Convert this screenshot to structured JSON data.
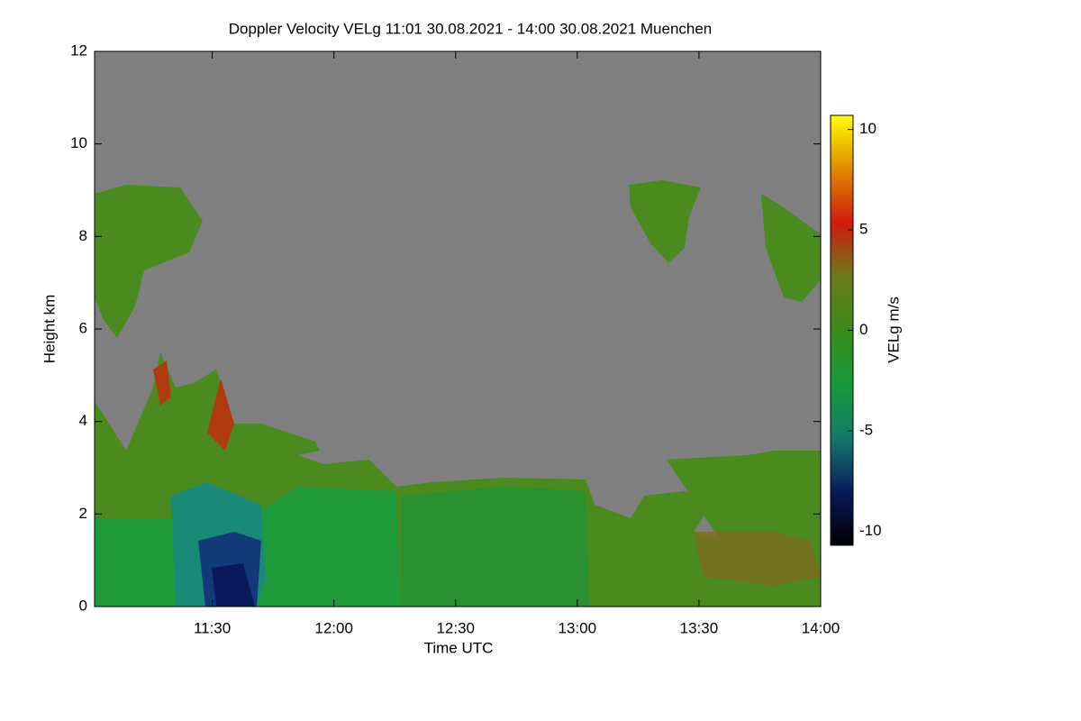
{
  "chart_data": {
    "type": "heatmap",
    "title": "Doppler Velocity VELg   11:01 30.08.2021 - 14:00 30.08.2021 Muenchen",
    "x_label": "Time UTC",
    "y_label": "Height km",
    "colorbar_label": "VELg m/s",
    "xlim": [
      661,
      840
    ],
    "xticks": [
      {
        "value": 690,
        "label": "11:30"
      },
      {
        "value": 720,
        "label": "12:00"
      },
      {
        "value": 750,
        "label": "12:30"
      },
      {
        "value": 780,
        "label": "13:00"
      },
      {
        "value": 810,
        "label": "13:30"
      },
      {
        "value": 840,
        "label": "14:00"
      }
    ],
    "ylim": [
      0,
      12
    ],
    "yticks": [
      0,
      2,
      4,
      6,
      8,
      10,
      12
    ],
    "zlim": [
      -10.7,
      10.7
    ],
    "zticks": [
      -10,
      -5,
      0,
      5,
      10
    ],
    "colormap": [
      "#000000",
      "#0a1a5a",
      "#137a6a",
      "#159a3a",
      "#3a8a1a",
      "#6a7a1a",
      "#d01a0a",
      "#e08a00",
      "#ffff00"
    ],
    "background": "#808080"
  }
}
